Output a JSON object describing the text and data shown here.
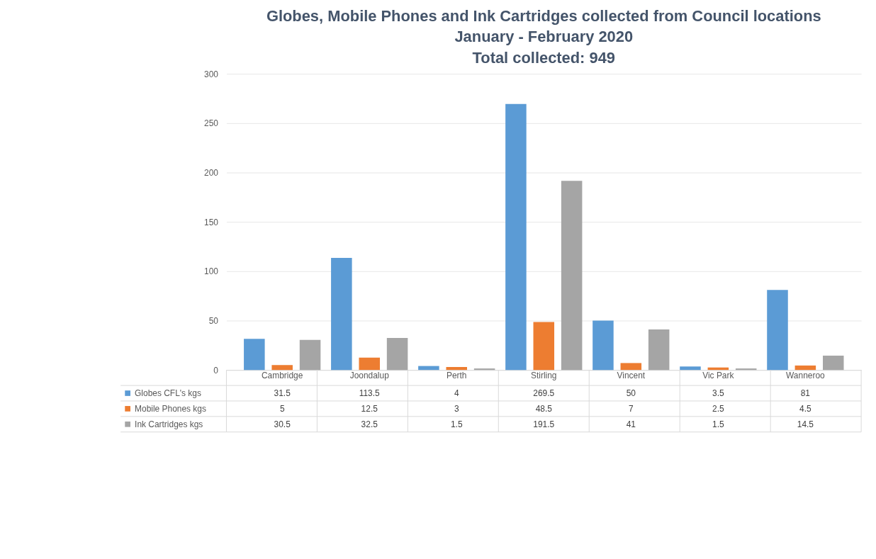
{
  "chart_data": {
    "type": "bar",
    "title": [
      "Globes, Mobile Phones and Ink Cartridges collected from Council locations",
      "January - February 2020",
      "Total collected: 949"
    ],
    "categories": [
      "Cambridge",
      "Joondalup",
      "Perth",
      "Stirling",
      "Vincent",
      "Vic Park",
      "Wanneroo"
    ],
    "series": [
      {
        "name": "Globes CFL's kgs",
        "color": "#5b9bd5",
        "values": [
          31.5,
          113.5,
          4,
          269.5,
          50,
          3.5,
          81
        ]
      },
      {
        "name": "Mobile Phones kgs",
        "color": "#ed7d31",
        "values": [
          5,
          12.5,
          3,
          48.5,
          7,
          2.5,
          4.5
        ]
      },
      {
        "name": "Ink Cartridges kgs",
        "color": "#a5a5a5",
        "values": [
          30.5,
          32.5,
          1.5,
          191.5,
          41,
          1.5,
          14.5
        ]
      }
    ],
    "ylim": [
      0,
      300
    ],
    "yticks": [
      0,
      50,
      100,
      150,
      200,
      250,
      300
    ],
    "grid": "y",
    "legend": "bottom",
    "data_labels": true
  }
}
